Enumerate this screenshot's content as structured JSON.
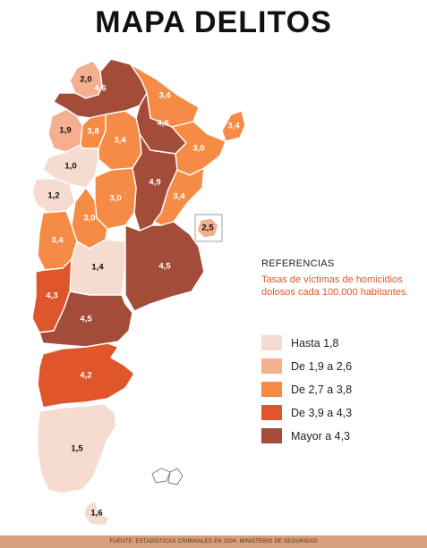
{
  "title": "MAPA DELITOS",
  "legend": {
    "heading": "REFERENCIAS",
    "description": "Tasas de víctimas de homicidios dolosos cada 100.000 habitantes.",
    "items": [
      {
        "label": "Hasta 1,8",
        "color": "#f6dbd0"
      },
      {
        "label": "De 1,9 a 2,6",
        "color": "#f4ae90"
      },
      {
        "label": "De 2,7 a 3,8",
        "color": "#f58b45"
      },
      {
        "label": "De 3,9 a 4,3",
        "color": "#e0562c"
      },
      {
        "label": "Mayor a 4,3",
        "color": "#a24c39"
      }
    ]
  },
  "regions": [
    {
      "id": "jujuy",
      "value": "2,0",
      "category": 1
    },
    {
      "id": "salta",
      "value": "4,6",
      "category": 4
    },
    {
      "id": "formosa",
      "value": "3,4",
      "category": 2
    },
    {
      "id": "misiones",
      "value": "3,4",
      "category": 2
    },
    {
      "id": "chaco",
      "value": "4,6",
      "category": 4
    },
    {
      "id": "tucuman",
      "value": "1,9",
      "category": 1
    },
    {
      "id": "santiago",
      "value": "3,4",
      "category": 2
    },
    {
      "id": "catamarca-east",
      "value": "3,8",
      "category": 2
    },
    {
      "id": "corrientes",
      "value": "3,0",
      "category": 2
    },
    {
      "id": "catamarca",
      "value": "1,0",
      "category": 0
    },
    {
      "id": "santa-fe",
      "value": "4,9",
      "category": 4
    },
    {
      "id": "la-rioja",
      "value": "1,2",
      "category": 0
    },
    {
      "id": "cordoba",
      "value": "3,0",
      "category": 2
    },
    {
      "id": "entre-rios",
      "value": "3,4",
      "category": 2
    },
    {
      "id": "san-luis",
      "value": "3,0",
      "category": 2
    },
    {
      "id": "caba",
      "value": "2,5",
      "category": 1
    },
    {
      "id": "san-juan-mendoza",
      "value": "3,4",
      "category": 2
    },
    {
      "id": "la-pampa",
      "value": "1,4",
      "category": 0
    },
    {
      "id": "buenos-aires",
      "value": "4,5",
      "category": 4
    },
    {
      "id": "neuquen",
      "value": "4,3",
      "category": 3
    },
    {
      "id": "rio-negro",
      "value": "4,5",
      "category": 4
    },
    {
      "id": "chubut",
      "value": "4,2",
      "category": 3
    },
    {
      "id": "santa-cruz",
      "value": "1,5",
      "category": 0
    },
    {
      "id": "tierra-del-fuego",
      "value": "1,6",
      "category": 0
    }
  ],
  "source": "FUENTE: ESTADÍSTICAS CRIMINALES EN 2024. MINISTERIO DE SEGURIDAD"
}
